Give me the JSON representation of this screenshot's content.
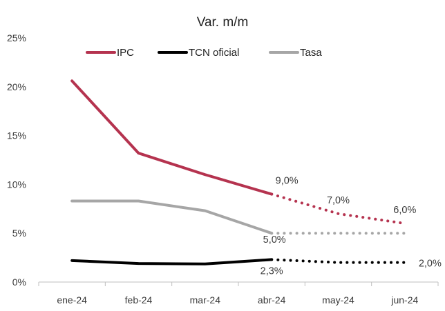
{
  "chart_data": {
    "type": "line",
    "title": "Var. m/m",
    "categories": [
      "ene-24",
      "feb-24",
      "mar-24",
      "abr-24",
      "may-24",
      "jun-24"
    ],
    "y_ticks": [
      "0%",
      "5%",
      "10%",
      "15%",
      "20%",
      "25%"
    ],
    "ylim": [
      0,
      25
    ],
    "grid": false,
    "legend_position": "top",
    "series": [
      {
        "name": "IPC",
        "color": "#b5334f",
        "actual": [
          20.6,
          13.2,
          11.0,
          9.0
        ],
        "projected": [
          9.0,
          7.0,
          6.0
        ],
        "labels": [
          {
            "index": 3,
            "text": "9,0%"
          },
          {
            "index": 4,
            "text": "7,0%"
          },
          {
            "index": 5,
            "text": "6,0%"
          }
        ]
      },
      {
        "name": "TCN oficial",
        "color": "#000000",
        "actual": [
          2.2,
          1.9,
          1.85,
          2.3
        ],
        "projected": [
          2.3,
          2.0,
          2.0
        ],
        "labels": [
          {
            "index": 3,
            "text": "2,3%"
          },
          {
            "index": 5,
            "text": "2,0%"
          }
        ]
      },
      {
        "name": "Tasa",
        "color": "#a6a6a6",
        "actual": [
          8.3,
          8.3,
          7.3,
          5.0
        ],
        "projected": [
          5.0,
          5.0,
          5.0
        ],
        "labels": [
          {
            "index": 3,
            "text": "5,0%"
          }
        ]
      }
    ]
  }
}
